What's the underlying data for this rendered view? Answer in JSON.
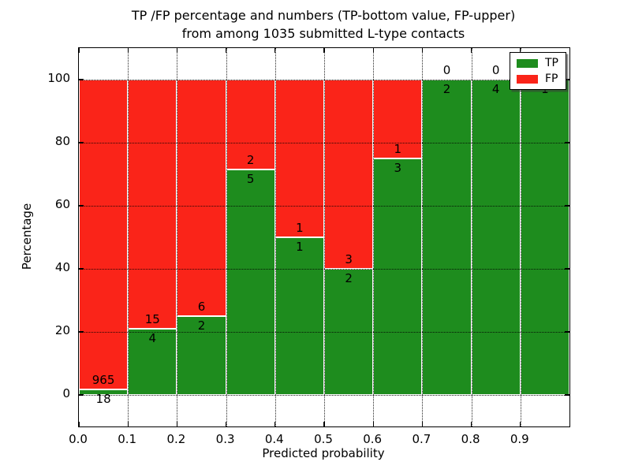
{
  "title": {
    "line1": "TP /FP percentage and numbers (TP-bottom value, FP-upper)",
    "line2": "from among 1035 submitted L-type contacts"
  },
  "axes": {
    "xlabel": "Predicted probability",
    "ylabel": "Percentage",
    "xtick_labels": [
      "0.0",
      "0.1",
      "0.2",
      "0.3",
      "0.4",
      "0.5",
      "0.6",
      "0.7",
      "0.8",
      "0.9"
    ],
    "ytick_values": [
      0,
      20,
      40,
      60,
      80,
      100
    ],
    "xlim": [
      0.0,
      1.0
    ],
    "ylim": [
      -10,
      110
    ],
    "grid": "dotted, both axes, drawn above bars"
  },
  "legend": {
    "position": "upper right",
    "items": [
      {
        "label": "TP",
        "color": "#1e8c1e"
      },
      {
        "label": "FP",
        "color": "#fa2419"
      }
    ]
  },
  "colors": {
    "tp_green": "#1e8c1e",
    "fp_red": "#fa2419",
    "bar_edge": "#ffffff",
    "background": "#ffffff",
    "text": "#000000"
  },
  "chart_data": {
    "type": "bar",
    "stacked": true,
    "total_contacts": 1035,
    "bin_width": 0.1,
    "categories": [
      "0.0-0.1",
      "0.1-0.2",
      "0.2-0.3",
      "0.3-0.4",
      "0.4-0.5",
      "0.5-0.6",
      "0.6-0.7",
      "0.7-0.8",
      "0.8-0.9",
      "0.9-1.0"
    ],
    "series": [
      {
        "name": "TP",
        "counts": [
          18,
          4,
          2,
          5,
          1,
          2,
          3,
          2,
          4,
          1
        ]
      },
      {
        "name": "FP",
        "counts": [
          965,
          15,
          6,
          2,
          1,
          3,
          1,
          0,
          0,
          0
        ]
      }
    ],
    "tp_percent": [
      1.83,
      21.05,
      25.0,
      71.43,
      50.0,
      40.0,
      75.0,
      100.0,
      100.0,
      100.0
    ],
    "title": "TP /FP percentage and numbers (TP-bottom value, FP-upper) from among 1035 submitted L-type contacts",
    "xlabel": "Predicted probability",
    "ylabel": "Percentage",
    "ylim": [
      -10,
      110
    ],
    "legend_position": "upper right"
  }
}
